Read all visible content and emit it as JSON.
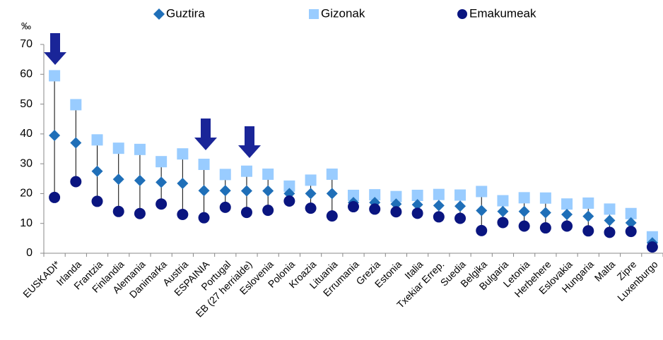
{
  "chart_data": {
    "type": "dot",
    "y_label": "‰",
    "categories": [
      "EUSKADI*",
      "Irlanda",
      "Frantzia",
      "Finlandia",
      "Alemania",
      "Danimarka",
      "Austria",
      "ESPAINIA",
      "Portugal",
      "EB (27 herrialde)",
      "Eslovenia",
      "Polonia",
      "Kroazia",
      "Lituania",
      "Errumania",
      "Grezia",
      "Estonia",
      "Italia",
      "Txekiar Errep.",
      "Suedia",
      "Belgika",
      "Bulgaria",
      "Letonia",
      "Herbehere",
      "Eslovakia",
      "Hungaria",
      "Malta",
      "Zipre",
      "Luxenburgo"
    ],
    "series": [
      {
        "name": "Guztira",
        "color": "#1f6fb8",
        "marker": "diamond",
        "values": [
          39.5,
          37,
          27.5,
          24.8,
          24.4,
          23.8,
          23.4,
          21,
          21,
          20.9,
          20.9,
          20,
          20,
          20,
          17,
          17,
          16.5,
          16.3,
          16,
          15.8,
          14.3,
          14,
          14,
          13.6,
          13,
          12.4,
          11,
          10.2,
          3.5
        ]
      },
      {
        "name": "Gizonak",
        "color": "#99ccff",
        "marker": "square",
        "values": [
          59.5,
          49.8,
          38,
          35.2,
          34.8,
          30.7,
          33.3,
          29.8,
          26.4,
          27.5,
          26.5,
          22.5,
          24.5,
          26.5,
          19.4,
          19.6,
          19,
          19.4,
          19.7,
          19.5,
          20.7,
          17.6,
          18.6,
          18.5,
          16.5,
          16.8,
          14.8,
          13.3,
          5.5
        ]
      },
      {
        "name": "Emakumeak",
        "color": "#0a1580",
        "marker": "circle",
        "values": [
          18.7,
          24,
          17.4,
          14,
          13.3,
          16.5,
          13,
          11.9,
          15.4,
          13.7,
          14.4,
          17.5,
          15.1,
          12.5,
          15.6,
          14.8,
          13.9,
          13.4,
          12.2,
          11.7,
          7.6,
          10.3,
          9.1,
          8.5,
          9.1,
          7.5,
          7,
          7.3,
          2.1
        ]
      }
    ],
    "ylim": [
      0,
      70
    ],
    "yticks": [
      0,
      10,
      20,
      30,
      40,
      50,
      60,
      70
    ],
    "grid": false
  }
}
